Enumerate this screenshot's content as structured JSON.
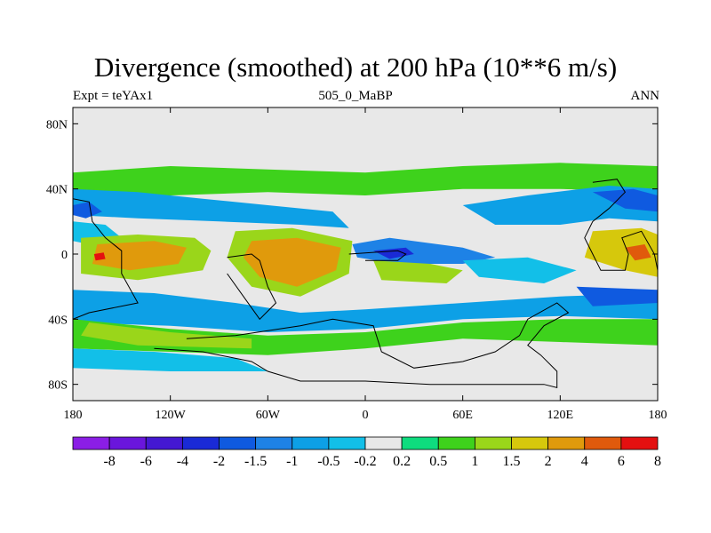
{
  "chart_data": {
    "type": "heatmap",
    "title": "Divergence (smoothed) at 200 hPa (10**6 m/s)",
    "subtitle_left": "Expt = teYAx1",
    "subtitle_center": "505_0_MaBP",
    "subtitle_right": "ANN",
    "x_range": [
      -180,
      180
    ],
    "y_range": [
      -90,
      90
    ],
    "x_ticks": [
      {
        "value": -180,
        "label": "180"
      },
      {
        "value": -120,
        "label": "120W"
      },
      {
        "value": -60,
        "label": "60W"
      },
      {
        "value": 0,
        "label": "0"
      },
      {
        "value": 60,
        "label": "60E"
      },
      {
        "value": 120,
        "label": "120E"
      },
      {
        "value": 180,
        "label": "180"
      }
    ],
    "y_ticks": [
      {
        "value": 80,
        "label": "80N"
      },
      {
        "value": 40,
        "label": "40N"
      },
      {
        "value": 0,
        "label": "0"
      },
      {
        "value": -40,
        "label": "40S"
      },
      {
        "value": -80,
        "label": "80S"
      }
    ],
    "colorbar": {
      "levels": [
        "-8",
        "-6",
        "-4",
        "-2",
        "-1.5",
        "-1",
        "-0.5",
        "-0.2",
        "0.2",
        "0.5",
        "1",
        "1.5",
        "2",
        "4",
        "6",
        "8"
      ],
      "colors": [
        "#8b1ee6",
        "#6a16dc",
        "#4418d2",
        "#1a2ad6",
        "#0f5ae0",
        "#1e82e6",
        "#0da0e6",
        "#12bfe8",
        "#e8e8e8",
        "#0edc7e",
        "#3ed21c",
        "#9ad61a",
        "#d6c80c",
        "#e09a0c",
        "#e05a0c",
        "#e41010"
      ]
    },
    "background": "#e8e8e8",
    "features": [
      {
        "name": "midlat-nh-band",
        "value": 0.5,
        "points": [
          [
            -180,
            50
          ],
          [
            -120,
            54
          ],
          [
            -60,
            52
          ],
          [
            0,
            50
          ],
          [
            60,
            54
          ],
          [
            120,
            56
          ],
          [
            180,
            54
          ],
          [
            180,
            38
          ],
          [
            120,
            40
          ],
          [
            60,
            40
          ],
          [
            0,
            36
          ],
          [
            -60,
            38
          ],
          [
            -120,
            36
          ],
          [
            -180,
            34
          ]
        ]
      },
      {
        "name": "midlat-nh-negative",
        "value": -1,
        "points": [
          [
            -180,
            40
          ],
          [
            -140,
            38
          ],
          [
            -100,
            34
          ],
          [
            -60,
            30
          ],
          [
            -20,
            26
          ],
          [
            -10,
            16
          ],
          [
            -40,
            18
          ],
          [
            -90,
            20
          ],
          [
            -140,
            22
          ],
          [
            -180,
            24
          ]
        ]
      },
      {
        "name": "midlat-nh-negative-east",
        "value": -1,
        "points": [
          [
            60,
            30
          ],
          [
            100,
            36
          ],
          [
            150,
            42
          ],
          [
            180,
            40
          ],
          [
            180,
            20
          ],
          [
            150,
            22
          ],
          [
            120,
            18
          ],
          [
            80,
            18
          ]
        ]
      },
      {
        "name": "core-nh-negative-east",
        "value": -2,
        "points": [
          [
            140,
            38
          ],
          [
            165,
            40
          ],
          [
            180,
            36
          ],
          [
            180,
            26
          ],
          [
            160,
            28
          ]
        ]
      },
      {
        "name": "core-nh-negative-west",
        "value": -2,
        "points": [
          [
            -180,
            30
          ],
          [
            -170,
            32
          ],
          [
            -162,
            26
          ],
          [
            -172,
            22
          ],
          [
            -180,
            24
          ]
        ]
      },
      {
        "name": "tropical-west-pacific-negative",
        "value": -0.5,
        "points": [
          [
            -180,
            20
          ],
          [
            -160,
            18
          ],
          [
            -150,
            10
          ],
          [
            -160,
            4
          ],
          [
            -180,
            8
          ]
        ]
      },
      {
        "name": "tropical-west-pacific-positive",
        "value": 1,
        "points": [
          [
            -175,
            10
          ],
          [
            -140,
            12
          ],
          [
            -105,
            10
          ],
          [
            -95,
            2
          ],
          [
            -100,
            -10
          ],
          [
            -140,
            -16
          ],
          [
            -175,
            -12
          ]
        ]
      },
      {
        "name": "tropical-west-pacific-core",
        "value": 2,
        "points": [
          [
            -165,
            6
          ],
          [
            -130,
            8
          ],
          [
            -110,
            4
          ],
          [
            -115,
            -6
          ],
          [
            -145,
            -10
          ],
          [
            -168,
            -6
          ]
        ]
      },
      {
        "name": "tropical-west-pacific-peak",
        "value": 6,
        "points": [
          [
            -167,
            0
          ],
          [
            -161,
            1
          ],
          [
            -160,
            -3
          ],
          [
            -166,
            -4
          ]
        ]
      },
      {
        "name": "americas-positive",
        "value": 1,
        "points": [
          [
            -80,
            14
          ],
          [
            -45,
            16
          ],
          [
            -8,
            8
          ],
          [
            -10,
            -12
          ],
          [
            -40,
            -26
          ],
          [
            -70,
            -20
          ],
          [
            -85,
            -2
          ]
        ]
      },
      {
        "name": "americas-core",
        "value": 2,
        "points": [
          [
            -70,
            8
          ],
          [
            -42,
            10
          ],
          [
            -15,
            4
          ],
          [
            -18,
            -10
          ],
          [
            -42,
            -20
          ],
          [
            -65,
            -14
          ],
          [
            -75,
            -2
          ]
        ]
      },
      {
        "name": "atlantic-negative",
        "value": -1.5,
        "points": [
          [
            -8,
            6
          ],
          [
            15,
            10
          ],
          [
            60,
            4
          ],
          [
            80,
            -2
          ],
          [
            60,
            -6
          ],
          [
            20,
            -6
          ],
          [
            -5,
            -2
          ]
        ]
      },
      {
        "name": "atlantic-negative-core",
        "value": -4,
        "points": [
          [
            5,
            2
          ],
          [
            25,
            4
          ],
          [
            30,
            0
          ],
          [
            15,
            -3
          ]
        ]
      },
      {
        "name": "africa-positive",
        "value": 1,
        "points": [
          [
            5,
            -4
          ],
          [
            40,
            -6
          ],
          [
            60,
            -10
          ],
          [
            50,
            -18
          ],
          [
            10,
            -16
          ]
        ]
      },
      {
        "name": "indian-ocean-negative",
        "value": -0.5,
        "points": [
          [
            60,
            -4
          ],
          [
            100,
            -2
          ],
          [
            130,
            -10
          ],
          [
            110,
            -18
          ],
          [
            70,
            -14
          ]
        ]
      },
      {
        "name": "tropical-east-pacific-positive",
        "value": 1.5,
        "points": [
          [
            140,
            14
          ],
          [
            170,
            16
          ],
          [
            180,
            12
          ],
          [
            180,
            -14
          ],
          [
            160,
            -10
          ],
          [
            135,
            -2
          ]
        ]
      },
      {
        "name": "tropical-east-pacific-core",
        "value": 4,
        "points": [
          [
            160,
            4
          ],
          [
            172,
            6
          ],
          [
            176,
            -2
          ],
          [
            166,
            -4
          ]
        ]
      },
      {
        "name": "southern-band-negative",
        "value": -1,
        "points": [
          [
            -180,
            -22
          ],
          [
            -130,
            -24
          ],
          [
            -80,
            -30
          ],
          [
            -40,
            -36
          ],
          [
            0,
            -34
          ],
          [
            60,
            -30
          ],
          [
            120,
            -26
          ],
          [
            180,
            -24
          ],
          [
            180,
            -40
          ],
          [
            120,
            -38
          ],
          [
            60,
            -40
          ],
          [
            0,
            -46
          ],
          [
            -60,
            -48
          ],
          [
            -120,
            -44
          ],
          [
            -180,
            -42
          ]
        ]
      },
      {
        "name": "southern-band-negative-core",
        "value": -2,
        "points": [
          [
            130,
            -20
          ],
          [
            180,
            -22
          ],
          [
            180,
            -30
          ],
          [
            140,
            -32
          ]
        ]
      },
      {
        "name": "southern-positive-band",
        "value": 0.5,
        "points": [
          [
            -180,
            -40
          ],
          [
            -120,
            -46
          ],
          [
            -60,
            -50
          ],
          [
            0,
            -48
          ],
          [
            60,
            -42
          ],
          [
            120,
            -40
          ],
          [
            180,
            -40
          ],
          [
            180,
            -56
          ],
          [
            120,
            -54
          ],
          [
            60,
            -52
          ],
          [
            0,
            -58
          ],
          [
            -60,
            -62
          ],
          [
            -120,
            -60
          ],
          [
            -180,
            -58
          ]
        ]
      },
      {
        "name": "southern-positive-core",
        "value": 1,
        "points": [
          [
            -170,
            -42
          ],
          [
            -120,
            -48
          ],
          [
            -70,
            -52
          ],
          [
            -70,
            -58
          ],
          [
            -140,
            -56
          ],
          [
            -175,
            -50
          ]
        ]
      },
      {
        "name": "subpolar-south-negative",
        "value": -0.5,
        "points": [
          [
            -180,
            -58
          ],
          [
            -130,
            -60
          ],
          [
            -80,
            -64
          ],
          [
            -60,
            -72
          ],
          [
            -120,
            -72
          ],
          [
            -180,
            -70
          ]
        ]
      }
    ],
    "continents": [
      {
        "name": "antarctica-outline",
        "points": [
          [
            -130,
            -58
          ],
          [
            -100,
            -60
          ],
          [
            -70,
            -66
          ],
          [
            -60,
            -72
          ],
          [
            -40,
            -78
          ],
          [
            0,
            -78
          ],
          [
            40,
            -80
          ],
          [
            110,
            -80
          ],
          [
            118,
            -82
          ],
          [
            118,
            -72
          ],
          [
            108,
            -62
          ],
          [
            100,
            -56
          ],
          [
            110,
            -44
          ],
          [
            125,
            -36
          ],
          [
            118,
            -30
          ],
          [
            100,
            -40
          ],
          [
            95,
            -50
          ],
          [
            80,
            -60
          ],
          [
            60,
            -66
          ],
          [
            30,
            -70
          ],
          [
            10,
            -60
          ],
          [
            5,
            -44
          ],
          [
            -20,
            -40
          ],
          [
            -40,
            -44
          ],
          [
            -80,
            -50
          ],
          [
            -110,
            -52
          ]
        ]
      },
      {
        "name": "south-america-outline",
        "points": [
          [
            -85,
            -2
          ],
          [
            -70,
            0
          ],
          [
            -65,
            -4
          ],
          [
            -60,
            -20
          ],
          [
            -55,
            -30
          ],
          [
            -65,
            -40
          ],
          [
            -75,
            -26
          ],
          [
            -85,
            -12
          ]
        ]
      },
      {
        "name": "north-america-outline",
        "points": [
          [
            -180,
            34
          ],
          [
            -170,
            32
          ],
          [
            -168,
            20
          ],
          [
            -160,
            10
          ],
          [
            -150,
            2
          ],
          [
            -150,
            -12
          ],
          [
            -140,
            -30
          ],
          [
            -170,
            -36
          ],
          [
            -180,
            -40
          ]
        ]
      },
      {
        "name": "africa-outline",
        "points": [
          [
            -10,
            0
          ],
          [
            20,
            2
          ],
          [
            25,
            0
          ],
          [
            20,
            -4
          ],
          [
            0,
            -4
          ]
        ]
      },
      {
        "name": "asia-outline",
        "points": [
          [
            140,
            44
          ],
          [
            155,
            46
          ],
          [
            160,
            38
          ],
          [
            150,
            28
          ],
          [
            140,
            20
          ],
          [
            135,
            10
          ],
          [
            140,
            0
          ],
          [
            145,
            -10
          ],
          [
            160,
            -10
          ],
          [
            162,
            0
          ],
          [
            158,
            10
          ],
          [
            170,
            14
          ],
          [
            178,
            0
          ],
          [
            180,
            -10
          ],
          [
            180,
            40
          ]
        ]
      }
    ]
  }
}
